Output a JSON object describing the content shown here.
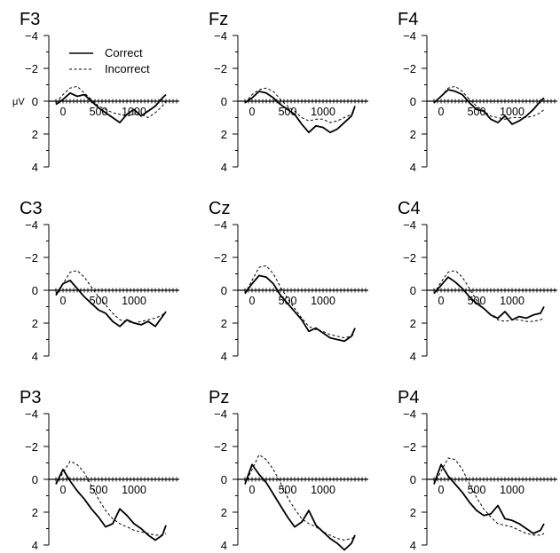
{
  "chart_data": {
    "type": "line",
    "shared": {
      "unit": "μV",
      "y_ticks": [
        -4,
        -2,
        0,
        2,
        4
      ],
      "ylim": [
        -4,
        4
      ],
      "y_inverted": true,
      "xlim": [
        -200,
        1500
      ],
      "x_ticks": [
        0,
        500,
        1000
      ],
      "x_tick_labels": [
        "0",
        "500",
        "1000"
      ],
      "legend": {
        "placement": "top-left",
        "entries": [
          "Correct",
          "Incorrect"
        ]
      },
      "series_names": [
        "Correct",
        "Incorrect"
      ]
    },
    "panels": [
      {
        "title": "F3",
        "series": [
          {
            "name": "Correct",
            "x": [
              -100,
              0,
              100,
              200,
              300,
              400,
              500,
              600,
              700,
              800,
              900,
              1000,
              1100,
              1200,
              1300,
              1400,
              1450
            ],
            "values": [
              0.2,
              -0.1,
              -0.5,
              -0.3,
              -0.4,
              0.0,
              0.4,
              0.7,
              1.0,
              1.3,
              0.8,
              0.5,
              0.9,
              0.6,
              0.3,
              -0.2,
              -0.4
            ]
          },
          {
            "name": "Incorrect",
            "x": [
              -100,
              0,
              100,
              200,
              300,
              400,
              500,
              600,
              700,
              800,
              900,
              1000,
              1100,
              1200,
              1300,
              1400,
              1450
            ],
            "values": [
              0.1,
              -0.4,
              -0.8,
              -0.9,
              -0.5,
              -0.1,
              0.3,
              0.5,
              0.7,
              0.8,
              0.9,
              0.8,
              0.8,
              1.0,
              0.7,
              0.3,
              0.0
            ]
          }
        ]
      },
      {
        "title": "Fz",
        "series": [
          {
            "name": "Correct",
            "x": [
              -100,
              0,
              100,
              200,
              300,
              400,
              500,
              600,
              700,
              800,
              900,
              1000,
              1100,
              1200,
              1300,
              1400,
              1450
            ],
            "values": [
              0.1,
              -0.2,
              -0.6,
              -0.5,
              -0.2,
              0.2,
              0.5,
              0.8,
              1.4,
              1.9,
              1.5,
              1.6,
              1.9,
              1.7,
              1.3,
              0.9,
              0.3
            ]
          },
          {
            "name": "Incorrect",
            "x": [
              -100,
              0,
              100,
              200,
              300,
              400,
              500,
              600,
              700,
              800,
              900,
              1000,
              1100,
              1200,
              1300,
              1400,
              1450
            ],
            "values": [
              0.1,
              -0.4,
              -0.7,
              -0.8,
              -0.6,
              -0.1,
              0.3,
              0.6,
              1.0,
              1.2,
              1.1,
              1.1,
              1.3,
              1.2,
              1.0,
              0.8,
              0.6
            ]
          }
        ]
      },
      {
        "title": "F4",
        "series": [
          {
            "name": "Correct",
            "x": [
              -100,
              0,
              100,
              200,
              300,
              400,
              500,
              600,
              700,
              800,
              900,
              1000,
              1100,
              1200,
              1300,
              1400,
              1450
            ],
            "values": [
              0.1,
              -0.3,
              -0.7,
              -0.6,
              -0.4,
              0.1,
              0.5,
              0.6,
              1.1,
              1.3,
              0.9,
              1.4,
              1.2,
              0.9,
              0.5,
              0.0,
              -0.2
            ]
          },
          {
            "name": "Incorrect",
            "x": [
              -100,
              0,
              100,
              200,
              300,
              400,
              500,
              600,
              700,
              800,
              900,
              1000,
              1100,
              1200,
              1300,
              1400,
              1450
            ],
            "values": [
              0.1,
              -0.3,
              -0.8,
              -0.9,
              -0.6,
              -0.1,
              0.3,
              0.6,
              0.9,
              1.0,
              1.1,
              1.0,
              1.0,
              1.0,
              0.9,
              0.7,
              0.5
            ]
          }
        ]
      },
      {
        "title": "C3",
        "series": [
          {
            "name": "Correct",
            "x": [
              -100,
              0,
              100,
              200,
              300,
              400,
              500,
              600,
              700,
              800,
              900,
              1000,
              1100,
              1200,
              1300,
              1400,
              1450
            ],
            "values": [
              0.3,
              -0.4,
              -0.6,
              -0.1,
              0.4,
              0.8,
              1.2,
              1.4,
              1.9,
              2.2,
              1.8,
              2.0,
              2.1,
              1.9,
              2.2,
              1.6,
              1.3
            ]
          },
          {
            "name": "Incorrect",
            "x": [
              -100,
              0,
              100,
              200,
              300,
              400,
              500,
              600,
              700,
              800,
              900,
              1000,
              1100,
              1200,
              1300,
              1400,
              1450
            ],
            "values": [
              0.2,
              -0.4,
              -1.1,
              -1.2,
              -0.8,
              -0.2,
              0.4,
              0.9,
              1.4,
              1.8,
              1.9,
              2.0,
              1.9,
              1.8,
              1.7,
              1.5,
              1.3
            ]
          }
        ]
      },
      {
        "title": "Cz",
        "series": [
          {
            "name": "Correct",
            "x": [
              -100,
              0,
              100,
              200,
              300,
              400,
              500,
              600,
              700,
              800,
              900,
              1000,
              1100,
              1200,
              1300,
              1400,
              1450
            ],
            "values": [
              0.2,
              -0.4,
              -0.9,
              -0.8,
              -0.4,
              0.3,
              0.8,
              1.3,
              1.8,
              2.5,
              2.3,
              2.6,
              2.9,
              3.0,
              3.1,
              2.8,
              2.3
            ]
          },
          {
            "name": "Incorrect",
            "x": [
              -100,
              0,
              100,
              200,
              300,
              400,
              500,
              600,
              700,
              800,
              900,
              1000,
              1100,
              1200,
              1300,
              1400,
              1450
            ],
            "values": [
              0.2,
              -0.6,
              -1.4,
              -1.5,
              -1.0,
              -0.2,
              0.5,
              1.1,
              1.7,
              2.2,
              2.4,
              2.5,
              2.7,
              2.8,
              2.9,
              2.8,
              2.6
            ]
          }
        ]
      },
      {
        "title": "C4",
        "series": [
          {
            "name": "Correct",
            "x": [
              -100,
              0,
              100,
              200,
              300,
              400,
              500,
              600,
              700,
              800,
              900,
              1000,
              1100,
              1200,
              1300,
              1400,
              1450
            ],
            "values": [
              0.2,
              -0.3,
              -0.8,
              -0.5,
              -0.1,
              0.4,
              0.8,
              1.1,
              1.5,
              1.7,
              1.3,
              1.8,
              1.6,
              1.7,
              1.5,
              1.4,
              1.0
            ]
          },
          {
            "name": "Incorrect",
            "x": [
              -100,
              0,
              100,
              200,
              300,
              400,
              500,
              600,
              700,
              800,
              900,
              1000,
              1100,
              1200,
              1300,
              1400,
              1450
            ],
            "values": [
              0.2,
              -0.5,
              -1.1,
              -1.2,
              -0.8,
              -0.1,
              0.6,
              1.1,
              1.5,
              1.8,
              1.9,
              1.8,
              1.8,
              1.9,
              1.9,
              1.8,
              1.7
            ]
          }
        ]
      },
      {
        "title": "P3",
        "series": [
          {
            "name": "Correct",
            "x": [
              -100,
              0,
              100,
              200,
              300,
              400,
              500,
              600,
              700,
              800,
              900,
              1000,
              1100,
              1200,
              1300,
              1400,
              1450
            ],
            "values": [
              0.3,
              -0.6,
              0.1,
              0.7,
              1.2,
              1.8,
              2.3,
              2.9,
              2.7,
              1.8,
              2.2,
              2.7,
              3.0,
              3.4,
              3.7,
              3.4,
              2.8
            ]
          },
          {
            "name": "Incorrect",
            "x": [
              -100,
              0,
              100,
              200,
              300,
              400,
              500,
              600,
              700,
              800,
              900,
              1000,
              1100,
              1200,
              1300,
              1400,
              1450
            ],
            "values": [
              0.3,
              -0.4,
              -1.1,
              -0.9,
              -0.4,
              0.4,
              1.2,
              1.9,
              2.4,
              2.7,
              2.9,
              3.1,
              3.2,
              3.3,
              3.4,
              3.4,
              3.3
            ]
          }
        ]
      },
      {
        "title": "Pz",
        "series": [
          {
            "name": "Correct",
            "x": [
              -100,
              0,
              100,
              200,
              300,
              400,
              500,
              600,
              700,
              800,
              900,
              1000,
              1100,
              1200,
              1300,
              1400,
              1450
            ],
            "values": [
              0.3,
              -0.9,
              -0.3,
              0.2,
              0.9,
              1.6,
              2.3,
              2.9,
              2.6,
              1.9,
              2.8,
              3.2,
              3.6,
              3.9,
              4.3,
              3.9,
              3.4
            ]
          },
          {
            "name": "Incorrect",
            "x": [
              -100,
              0,
              100,
              200,
              300,
              400,
              500,
              600,
              700,
              800,
              900,
              1000,
              1100,
              1200,
              1300,
              1400,
              1450
            ],
            "values": [
              0.3,
              -0.6,
              -1.5,
              -1.2,
              -0.6,
              0.2,
              1.1,
              1.8,
              2.4,
              2.7,
              2.9,
              3.2,
              3.4,
              3.6,
              3.7,
              3.6,
              3.5
            ]
          }
        ]
      },
      {
        "title": "P4",
        "series": [
          {
            "name": "Correct",
            "x": [
              -100,
              0,
              100,
              200,
              300,
              400,
              500,
              600,
              700,
              800,
              900,
              1000,
              1100,
              1200,
              1300,
              1400,
              1450
            ],
            "values": [
              0.3,
              -0.9,
              -0.2,
              0.3,
              0.8,
              1.4,
              1.9,
              2.2,
              2.1,
              1.6,
              2.4,
              2.5,
              2.7,
              3.0,
              3.3,
              3.1,
              2.7
            ]
          },
          {
            "name": "Incorrect",
            "x": [
              -100,
              0,
              100,
              200,
              300,
              400,
              500,
              600,
              700,
              800,
              900,
              1000,
              1100,
              1200,
              1300,
              1400,
              1450
            ],
            "values": [
              0.3,
              -0.5,
              -1.3,
              -1.2,
              -0.6,
              0.3,
              1.1,
              1.8,
              2.3,
              2.7,
              2.8,
              2.9,
              3.1,
              3.3,
              3.4,
              3.4,
              3.3
            ]
          }
        ]
      }
    ]
  }
}
